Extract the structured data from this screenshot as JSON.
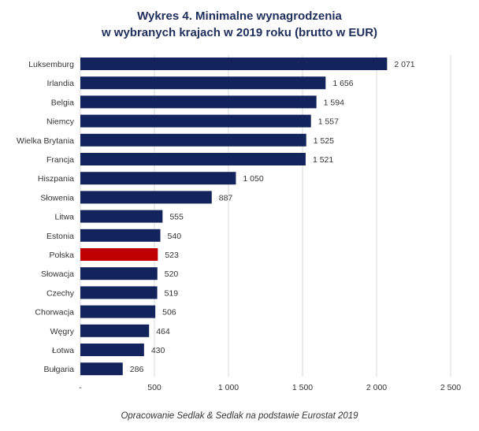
{
  "chart_data": {
    "type": "bar",
    "orientation": "horizontal",
    "title_line1": "Wykres 4. Minimalne wynagrodzenia",
    "title_line2": "w wybranych krajach w 2019 roku (brutto w EUR)",
    "categories": [
      "Luksemburg",
      "Irlandia",
      "Belgia",
      "Niemcy",
      "Wielka Brytania",
      "Francja",
      "Hiszpania",
      "Słowenia",
      "Litwa",
      "Estonia",
      "Polska",
      "Słowacja",
      "Czechy",
      "Chorwacja",
      "Węgry",
      "Łotwa",
      "Bułgaria"
    ],
    "values": [
      2071,
      1656,
      1594,
      1557,
      1525,
      1521,
      1050,
      887,
      555,
      540,
      523,
      520,
      519,
      506,
      464,
      430,
      286
    ],
    "value_labels": [
      "2 071",
      "1 656",
      "1 594",
      "1 557",
      "1 525",
      "1 521",
      "1 050",
      "887",
      "555",
      "540",
      "523",
      "520",
      "519",
      "506",
      "464",
      "430",
      "286"
    ],
    "highlight_category": "Polska",
    "xlim": [
      0,
      2500
    ],
    "xticks": [
      0,
      500,
      1000,
      1500,
      2000,
      2500
    ],
    "xtick_labels": [
      "-",
      "500",
      "1 000",
      "1 500",
      "2 000",
      "2 500"
    ],
    "xlabel": "",
    "ylabel": "",
    "grid": true,
    "colors": {
      "bar": "#13235c",
      "highlight": "#c00000",
      "grid": "#d9d9d9",
      "title": "#1f2f5c"
    }
  },
  "footnote": "Opracowanie Sedlak & Sedlak na podstawie Eurostat 2019"
}
